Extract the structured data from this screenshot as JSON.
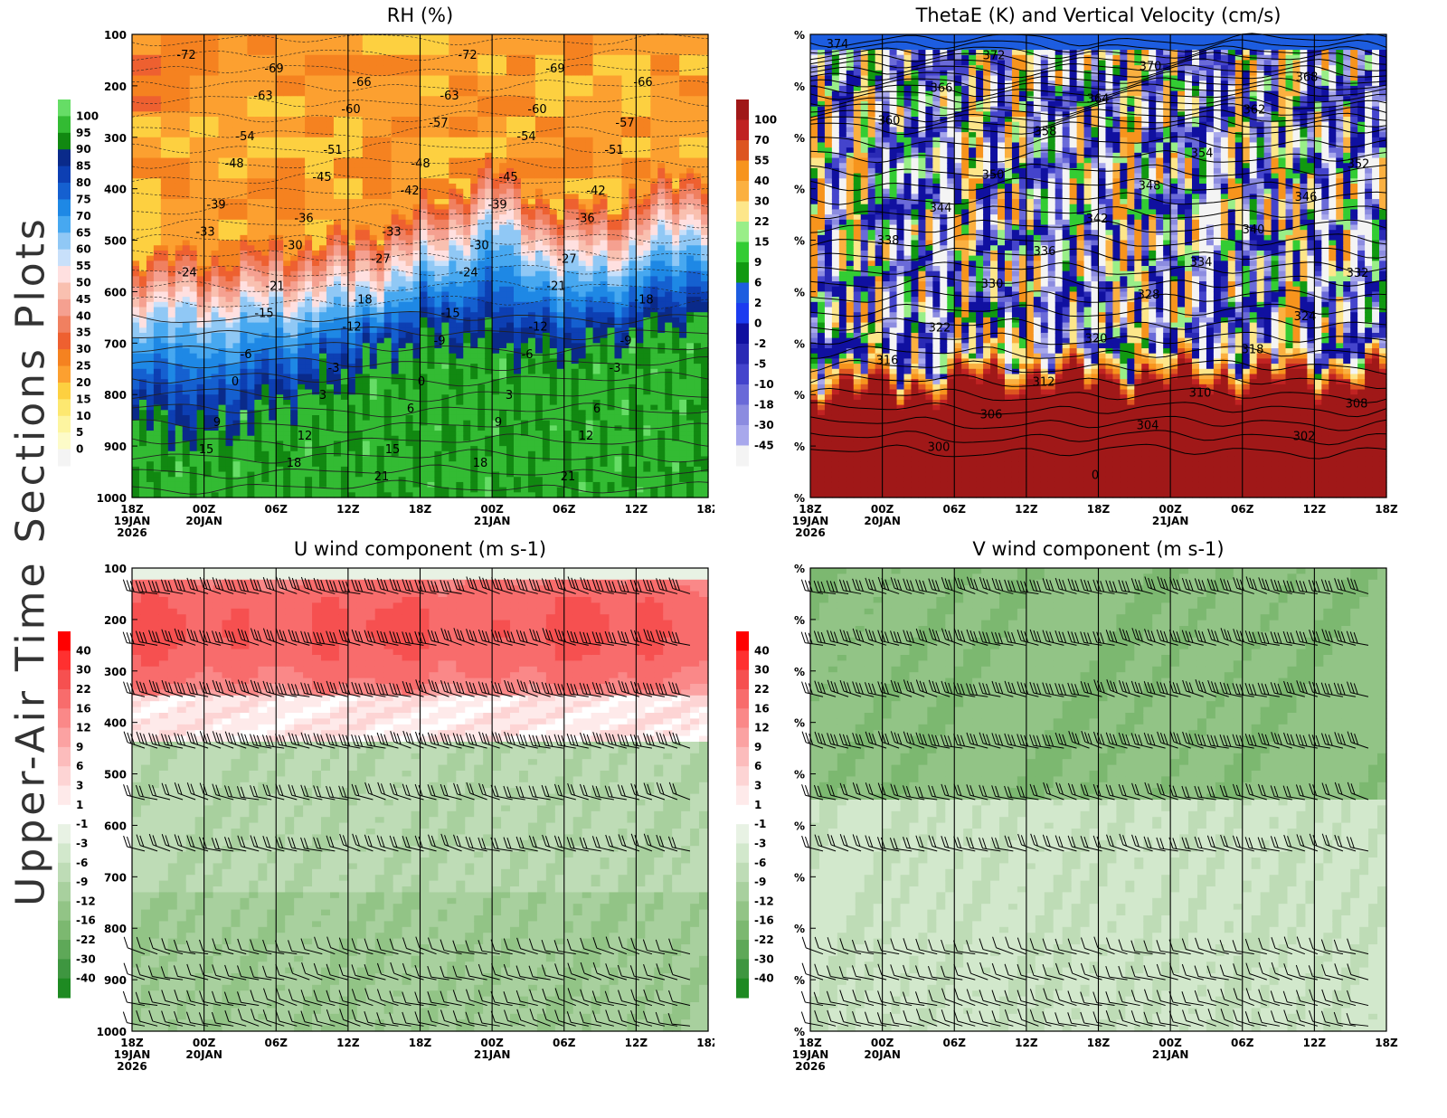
{
  "side_title": "Upper-Air Time Sections Plots",
  "time_axis": {
    "ticks": [
      "18Z",
      "00Z",
      "06Z",
      "12Z",
      "18Z",
      "00Z",
      "06Z",
      "12Z",
      "18Z"
    ],
    "date_labels": [
      {
        "tick": 0,
        "lines": [
          "19JAN",
          "2026"
        ]
      },
      {
        "tick": 1,
        "lines": [
          "20JAN"
        ]
      },
      {
        "tick": 5,
        "lines": [
          "21JAN"
        ]
      }
    ]
  },
  "chart_data": [
    {
      "id": "rh",
      "type": "heatmap",
      "title": "RH (%)",
      "xlabel": "",
      "ylabel": "",
      "yticks": [
        "100",
        "200",
        "300",
        "400",
        "500",
        "600",
        "700",
        "800",
        "900",
        "1000"
      ],
      "ylim": [
        1000,
        100
      ],
      "colorbar": {
        "labels": [
          "100",
          "95",
          "90",
          "85",
          "80",
          "75",
          "70",
          "65",
          "60",
          "55",
          "50",
          "45",
          "40",
          "35",
          "30",
          "25",
          "20",
          "15",
          "10",
          "5",
          "0"
        ],
        "colors": [
          "#66dd66",
          "#33bb33",
          "#118811",
          "#0a2a8a",
          "#0d3fb3",
          "#1560d0",
          "#1e88e5",
          "#47a8f0",
          "#90c8f5",
          "#c8e0fa",
          "#ffe0e0",
          "#f9c0b0",
          "#f5a090",
          "#f08060",
          "#ee6030",
          "#f58220",
          "#fca030",
          "#fdd040",
          "#fde870",
          "#fdf5a0",
          "#fdfbc8",
          "#f4f4f4"
        ]
      },
      "temperature_labels": [
        "-72",
        "-69",
        "-66",
        "-63",
        "-60",
        "-57",
        "-54",
        "-51",
        "-48",
        "-45",
        "-42",
        "-39",
        "-36",
        "-33",
        "-30",
        "-27",
        "-24",
        "-21",
        "-18",
        "-15",
        "-12",
        "-9",
        "-6",
        "-3",
        "0",
        "3",
        "6",
        "9",
        "12",
        "15",
        "18",
        "21"
      ],
      "rh_by_time": [
        {
          "time": "18Z 19JAN",
          "moist_top_hPa": 640,
          "saturated_top_hPa": 840
        },
        {
          "time": "00Z 20JAN",
          "moist_top_hPa": 650,
          "saturated_top_hPa": 880
        },
        {
          "time": "06Z 20JAN",
          "moist_top_hPa": 630,
          "saturated_top_hPa": 820
        },
        {
          "time": "12Z 20JAN",
          "moist_top_hPa": 610,
          "saturated_top_hPa": 760
        },
        {
          "time": "18Z 20JAN",
          "moist_top_hPa": 560,
          "saturated_top_hPa": 690
        },
        {
          "time": "00Z 21JAN",
          "moist_top_hPa": 470,
          "saturated_top_hPa": 700
        },
        {
          "time": "06Z 21JAN",
          "moist_top_hPa": 560,
          "saturated_top_hPa": 720
        },
        {
          "time": "12Z 21JAN",
          "moist_top_hPa": 530,
          "saturated_top_hPa": 680
        },
        {
          "time": "18Z 21JAN",
          "moist_top_hPa": 470,
          "saturated_top_hPa": 640
        }
      ]
    },
    {
      "id": "thetae",
      "type": "heatmap",
      "title": "ThetaE (K) and Vertical Velocity (cm/s)",
      "xlabel": "",
      "ylabel": "",
      "yticks": [
        "%",
        "%",
        "%",
        "%",
        "%",
        "%",
        "%",
        "%",
        "%",
        "%"
      ],
      "colorbar": {
        "labels": [
          "100",
          "70",
          "55",
          "40",
          "30",
          "22",
          "15",
          "9",
          "6",
          "2",
          "0",
          "-2",
          "-5",
          "-10",
          "-18",
          "-30",
          "-45"
        ],
        "colors": [
          "#a01818",
          "#c02222",
          "#dd5520",
          "#f7941d",
          "#fbb040",
          "#fde68a",
          "#99ee88",
          "#33cc33",
          "#119911",
          "#1d5de0",
          "#1c3cf0",
          "#1010a0",
          "#2a2ab5",
          "#4444cc",
          "#6a6ad8",
          "#8c8ce0",
          "#a8a8ec",
          "#f4f4f4"
        ]
      },
      "thetae_labels": [
        "374",
        "372",
        "370",
        "368",
        "366",
        "364",
        "362",
        "360",
        "358",
        "354",
        "352",
        "350",
        "348",
        "346",
        "344",
        "342",
        "340",
        "338",
        "336",
        "334",
        "332",
        "330",
        "328",
        "324",
        "322",
        "320",
        "318",
        "316",
        "312",
        "310",
        "308",
        "306",
        "304",
        "302",
        "300",
        "0"
      ]
    },
    {
      "id": "uwind",
      "type": "heatmap",
      "title": "U wind component (m s-1)",
      "xlabel": "",
      "ylabel": "",
      "yticks": [
        "100",
        "200",
        "300",
        "400",
        "500",
        "600",
        "700",
        "800",
        "900",
        "1000"
      ],
      "ylim": [
        1000,
        100
      ],
      "colorbar": {
        "labels": [
          "40",
          "30",
          "22",
          "16",
          "12",
          "9",
          "6",
          "3",
          "1",
          "-1",
          "-3",
          "-6",
          "-9",
          "-12",
          "-16",
          "-22",
          "-30",
          "-40"
        ],
        "colors": [
          "#ff0000",
          "#ff3030",
          "#f65050",
          "#f86c6c",
          "#fa8888",
          "#fba2a2",
          "#fcbcbc",
          "#fdd4d4",
          "#feeaea",
          "#ffffff",
          "#e8f2e4",
          "#d2e8cc",
          "#bedcb6",
          "#a8d09e",
          "#92c486",
          "#7cb870",
          "#5ea858",
          "#3e9640",
          "#1e8a22"
        ]
      },
      "barb_levels_hPa": [
        150,
        250,
        350,
        450,
        550,
        650,
        850,
        900,
        950,
        990
      ]
    },
    {
      "id": "vwind",
      "type": "heatmap",
      "title": "V wind component (m s-1)",
      "xlabel": "",
      "ylabel": "",
      "yticks": [
        "%",
        "%",
        "%",
        "%",
        "%",
        "%",
        "%",
        "%",
        "%",
        "%"
      ],
      "colorbar": {
        "labels": [
          "40",
          "30",
          "22",
          "16",
          "12",
          "9",
          "6",
          "3",
          "1",
          "-1",
          "-3",
          "-6",
          "-9",
          "-12",
          "-16",
          "-22",
          "-30",
          "-40"
        ],
        "colors": [
          "#ff0000",
          "#ff3030",
          "#f65050",
          "#f86c6c",
          "#fa8888",
          "#fba2a2",
          "#fcbcbc",
          "#fdd4d4",
          "#feeaea",
          "#ffffff",
          "#e8f2e4",
          "#d2e8cc",
          "#bedcb6",
          "#a8d09e",
          "#92c486",
          "#7cb870",
          "#5ea858",
          "#3e9640",
          "#1e8a22"
        ]
      },
      "barb_levels_hPa": [
        150,
        250,
        350,
        450,
        550,
        650,
        850,
        900,
        950,
        990
      ]
    }
  ]
}
